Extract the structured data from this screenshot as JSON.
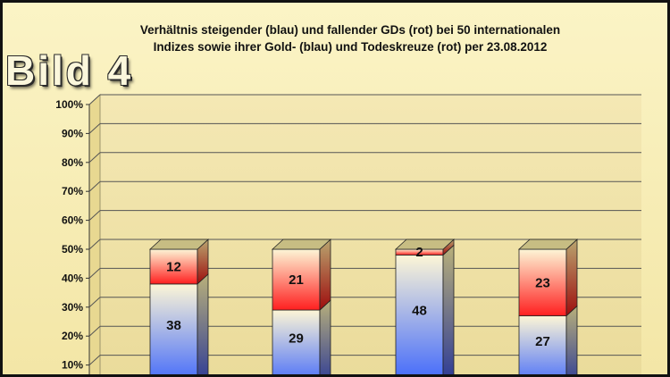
{
  "title_lines": [
    "Verhältnis steigender (blau) und fallender GDs (rot) bei 50 internationalen",
    "Indizes sowie ihrer Gold- (blau) und Todeskreuze (rot) per 23.08.2012"
  ],
  "badge_text": "Bild 4",
  "colors": {
    "blue": "#2f5bff",
    "red": "#ff1f1f",
    "cream": "#fdf6d6",
    "background": "#f6ecb4",
    "wall": "#f0e2a8"
  },
  "chart_data": {
    "type": "bar",
    "stacked": true,
    "percent": true,
    "categories": [
      "",
      "",
      "",
      ""
    ],
    "series": [
      {
        "color": "#2f5bff",
        "values": [
          38,
          29,
          48,
          27
        ]
      },
      {
        "color": "#ff1f1f",
        "values": [
          12,
          21,
          2,
          23
        ]
      }
    ],
    "ytick_labels": [
      "10%",
      "20%",
      "30%",
      "40%",
      "50%",
      "60%",
      "70%",
      "80%",
      "90%",
      "100%"
    ],
    "ylim": [
      0,
      100
    ],
    "grid": true,
    "legend": "none"
  }
}
